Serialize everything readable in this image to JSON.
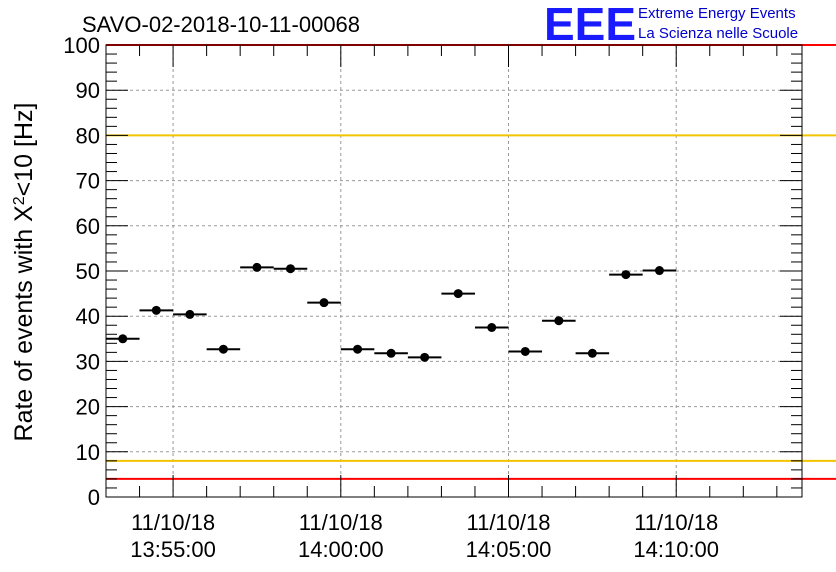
{
  "chart_data": {
    "type": "scatter",
    "title": "SAVO-02-2018-10-11-00068",
    "ylabel_prefix": "Rate of events with X",
    "ylabel_sup": "2",
    "ylabel_suffix": "<10 [Hz]",
    "xlabel": "",
    "ylim": [
      0,
      100
    ],
    "yticks": [
      0,
      10,
      20,
      30,
      40,
      50,
      60,
      70,
      80,
      90,
      100
    ],
    "xlim": [
      "13:53:00",
      "14:13:45"
    ],
    "xticks": [
      {
        "time": "13:55:00",
        "date": "11/10/18",
        "clock": "13:55:00"
      },
      {
        "time": "14:00:00",
        "date": "11/10/18",
        "clock": "14:00:00"
      },
      {
        "time": "14:05:00",
        "date": "11/10/18",
        "clock": "14:05:00"
      },
      {
        "time": "14:10:00",
        "date": "11/10/18",
        "clock": "14:10:00"
      }
    ],
    "grid": true,
    "reference_lines": [
      {
        "y": 80,
        "color": "#f2c400"
      },
      {
        "y": 8,
        "color": "#f2c400"
      },
      {
        "y": 4,
        "color": "#ff0000"
      },
      {
        "y": 100,
        "color": "#ff0000"
      }
    ],
    "bin_width_s": 60,
    "points": [
      {
        "time": "13:53:30",
        "value": 35
      },
      {
        "time": "13:54:30",
        "value": 41.3
      },
      {
        "time": "13:55:30",
        "value": 40.4
      },
      {
        "time": "13:56:30",
        "value": 32.7
      },
      {
        "time": "13:57:30",
        "value": 50.8
      },
      {
        "time": "13:58:30",
        "value": 50.5
      },
      {
        "time": "13:59:30",
        "value": 43
      },
      {
        "time": "14:00:30",
        "value": 32.7
      },
      {
        "time": "14:01:30",
        "value": 31.8
      },
      {
        "time": "14:02:30",
        "value": 30.9
      },
      {
        "time": "14:03:30",
        "value": 45
      },
      {
        "time": "14:04:30",
        "value": 37.5
      },
      {
        "time": "14:05:30",
        "value": 32.2
      },
      {
        "time": "14:06:30",
        "value": 39
      },
      {
        "time": "14:07:30",
        "value": 31.8
      },
      {
        "time": "14:08:30",
        "value": 49.2
      },
      {
        "time": "14:09:30",
        "value": 50.1
      }
    ]
  },
  "logo": {
    "letters": "EEE",
    "line1": "Extreme Energy Events",
    "line2": "La Scienza nelle Scuole"
  },
  "colors": {
    "points": "#000000",
    "grid": "#9a9a9a",
    "logo": "#1a1aff"
  }
}
